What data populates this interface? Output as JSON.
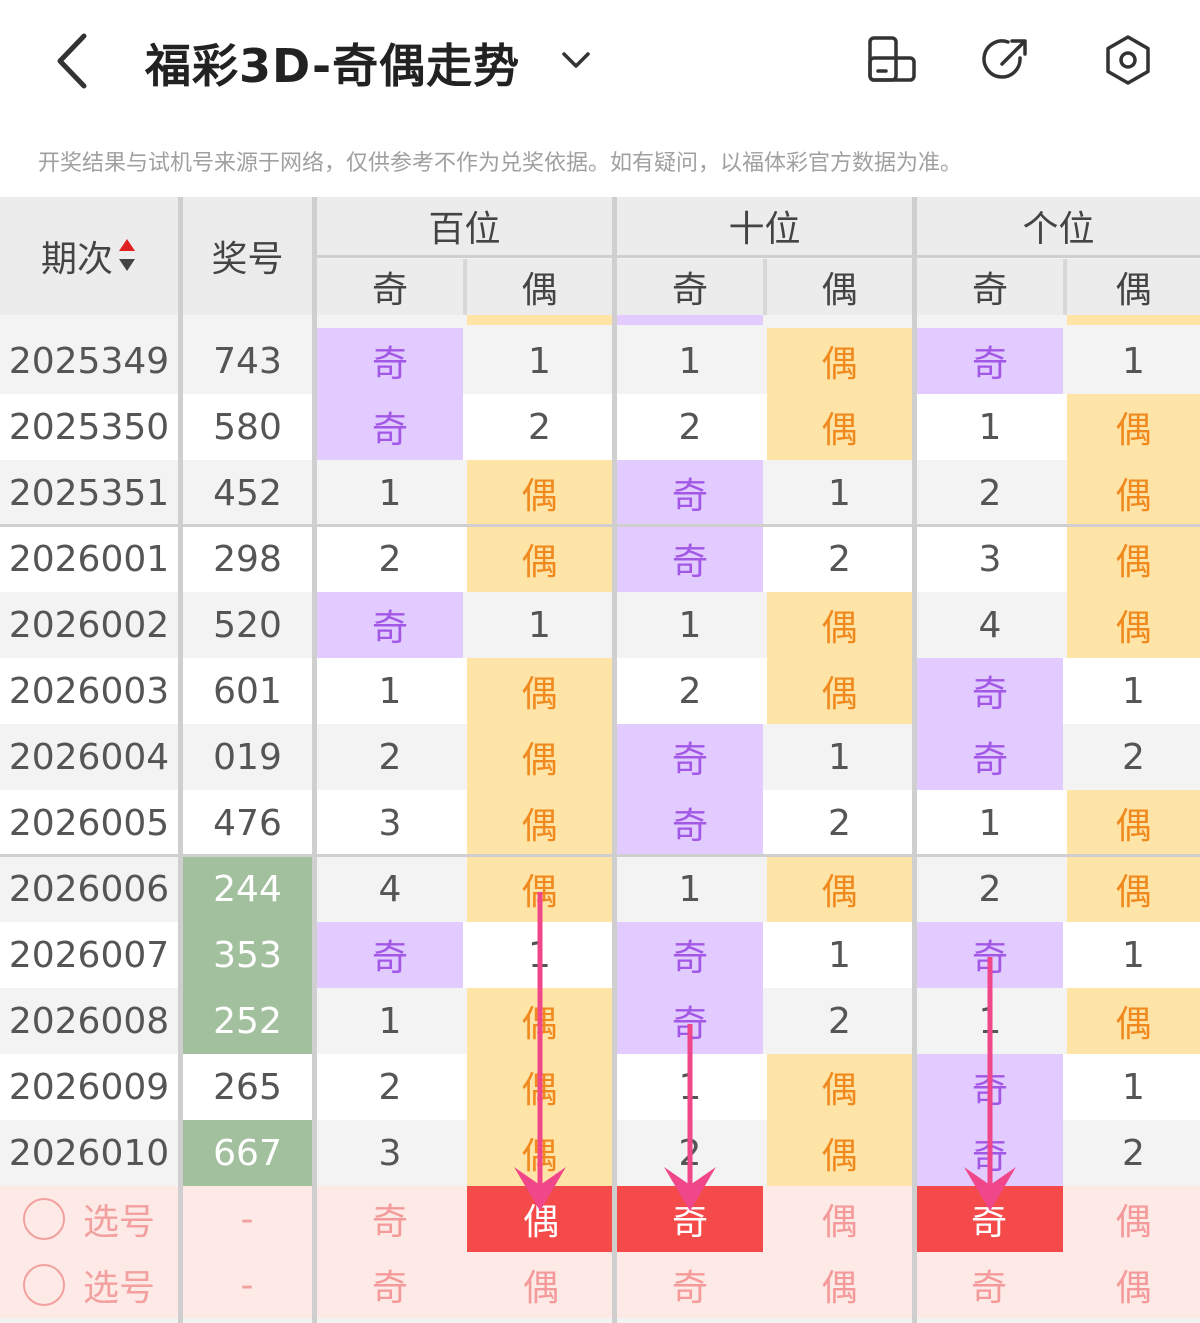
{
  "header": {
    "title": "福彩3D-奇偶走势",
    "back_icon": "chevron-left-icon",
    "dropdown_icon": "chevron-down-icon",
    "icons": [
      "phone-rotate-icon",
      "share-icon",
      "settings-icon"
    ]
  },
  "notice": "开奖结果与试机号来源于网络，仅供参考不作为兑奖依据。如有疑问，以福体彩官方数据为准。",
  "table": {
    "col_period": "期次",
    "col_number": "奖号",
    "groups": [
      "百位",
      "十位",
      "个位"
    ],
    "sub": [
      "奇",
      "偶"
    ],
    "rows": [
      {
        "period": "2025349",
        "number": "743",
        "hl": false,
        "cells": [
          [
            "odd",
            "奇"
          ],
          [
            "plain",
            "1"
          ],
          [
            "plain",
            "1"
          ],
          [
            "even",
            "偶"
          ],
          [
            "odd",
            "奇"
          ],
          [
            "plain",
            "1"
          ]
        ]
      },
      {
        "period": "2025350",
        "number": "580",
        "hl": false,
        "cells": [
          [
            "odd",
            "奇"
          ],
          [
            "plain",
            "2"
          ],
          [
            "plain",
            "2"
          ],
          [
            "even",
            "偶"
          ],
          [
            "plain",
            "1"
          ],
          [
            "even",
            "偶"
          ]
        ]
      },
      {
        "period": "2025351",
        "number": "452",
        "hl": false,
        "cells": [
          [
            "plain",
            "1"
          ],
          [
            "even",
            "偶"
          ],
          [
            "odd",
            "奇"
          ],
          [
            "plain",
            "1"
          ],
          [
            "plain",
            "2"
          ],
          [
            "even",
            "偶"
          ]
        ]
      },
      {
        "period": "2026001",
        "number": "298",
        "hl": false,
        "cells": [
          [
            "plain",
            "2"
          ],
          [
            "even",
            "偶"
          ],
          [
            "odd",
            "奇"
          ],
          [
            "plain",
            "2"
          ],
          [
            "plain",
            "3"
          ],
          [
            "even",
            "偶"
          ]
        ]
      },
      {
        "period": "2026002",
        "number": "520",
        "hl": false,
        "cells": [
          [
            "odd",
            "奇"
          ],
          [
            "plain",
            "1"
          ],
          [
            "plain",
            "1"
          ],
          [
            "even",
            "偶"
          ],
          [
            "plain",
            "4"
          ],
          [
            "even",
            "偶"
          ]
        ]
      },
      {
        "period": "2026003",
        "number": "601",
        "hl": false,
        "cells": [
          [
            "plain",
            "1"
          ],
          [
            "even",
            "偶"
          ],
          [
            "plain",
            "2"
          ],
          [
            "even",
            "偶"
          ],
          [
            "odd",
            "奇"
          ],
          [
            "plain",
            "1"
          ]
        ]
      },
      {
        "period": "2026004",
        "number": "019",
        "hl": false,
        "cells": [
          [
            "plain",
            "2"
          ],
          [
            "even",
            "偶"
          ],
          [
            "odd",
            "奇"
          ],
          [
            "plain",
            "1"
          ],
          [
            "odd",
            "奇"
          ],
          [
            "plain",
            "2"
          ]
        ]
      },
      {
        "period": "2026005",
        "number": "476",
        "hl": false,
        "cells": [
          [
            "plain",
            "3"
          ],
          [
            "even",
            "偶"
          ],
          [
            "odd",
            "奇"
          ],
          [
            "plain",
            "2"
          ],
          [
            "plain",
            "1"
          ],
          [
            "even",
            "偶"
          ]
        ]
      },
      {
        "period": "2026006",
        "number": "244",
        "hl": true,
        "cells": [
          [
            "plain",
            "4"
          ],
          [
            "even",
            "偶"
          ],
          [
            "plain",
            "1"
          ],
          [
            "even",
            "偶"
          ],
          [
            "plain",
            "2"
          ],
          [
            "even",
            "偶"
          ]
        ]
      },
      {
        "period": "2026007",
        "number": "353",
        "hl": true,
        "cells": [
          [
            "odd",
            "奇"
          ],
          [
            "plain",
            "1"
          ],
          [
            "odd",
            "奇"
          ],
          [
            "plain",
            "1"
          ],
          [
            "odd",
            "奇"
          ],
          [
            "plain",
            "1"
          ]
        ]
      },
      {
        "period": "2026008",
        "number": "252",
        "hl": true,
        "cells": [
          [
            "plain",
            "1"
          ],
          [
            "even",
            "偶"
          ],
          [
            "odd",
            "奇"
          ],
          [
            "plain",
            "2"
          ],
          [
            "plain",
            "1"
          ],
          [
            "even",
            "偶"
          ]
        ]
      },
      {
        "period": "2026009",
        "number": "265",
        "hl": false,
        "cells": [
          [
            "plain",
            "2"
          ],
          [
            "even",
            "偶"
          ],
          [
            "plain",
            "1"
          ],
          [
            "even",
            "偶"
          ],
          [
            "odd",
            "奇"
          ],
          [
            "plain",
            "1"
          ]
        ]
      },
      {
        "period": "2026010",
        "number": "667",
        "hl": true,
        "cells": [
          [
            "plain",
            "3"
          ],
          [
            "even",
            "偶"
          ],
          [
            "plain",
            "2"
          ],
          [
            "even",
            "偶"
          ],
          [
            "odd",
            "奇"
          ],
          [
            "plain",
            "2"
          ]
        ]
      }
    ],
    "pick_rows": [
      {
        "label": "选号",
        "dash": "-",
        "cells": [
          [
            "奇",
            false
          ],
          [
            "偶",
            true
          ],
          [
            "奇",
            true
          ],
          [
            "偶",
            false
          ],
          [
            "奇",
            true
          ],
          [
            "偶",
            false
          ]
        ]
      },
      {
        "label": "选号",
        "dash": "-",
        "cells": [
          [
            "奇",
            false
          ],
          [
            "偶",
            false
          ],
          [
            "奇",
            false
          ],
          [
            "偶",
            false
          ],
          [
            "奇",
            false
          ],
          [
            "偶",
            false
          ]
        ]
      }
    ]
  },
  "colors": {
    "odd_bg": "#e2cbff",
    "even_bg": "#ffe4a8",
    "selected": "#f44a49",
    "arrow": "#f0468a",
    "highlight_number": "#a3c09e"
  }
}
